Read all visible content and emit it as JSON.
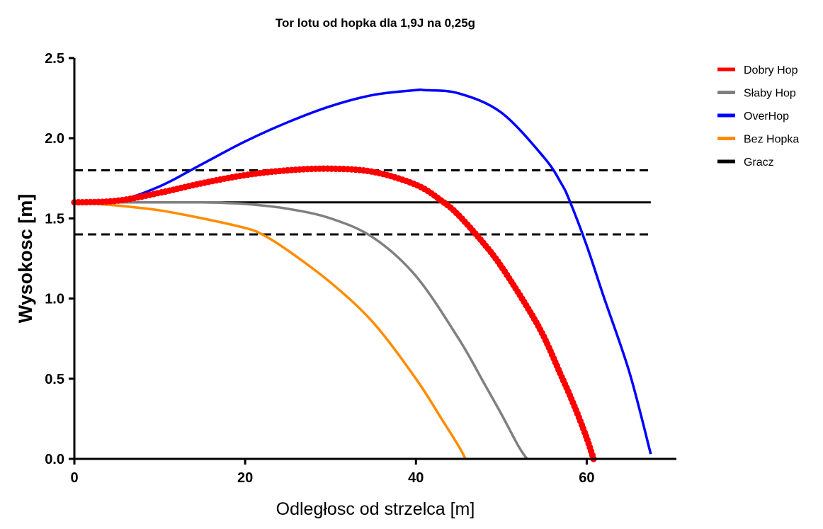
{
  "chart_data": {
    "type": "line",
    "title": "Tor lotu od hopka dla 1,9J na 0,25g",
    "xlabel": "Odległosc od strzelca [m]",
    "ylabel": "Wysokosc [m]",
    "xlim": [
      0,
      70.5
    ],
    "ylim": [
      0,
      2.5
    ],
    "xticks": [
      0,
      20,
      40,
      60
    ],
    "xtick_labels": [
      "0",
      "20",
      "40",
      "60"
    ],
    "yticks": [
      0,
      0.5,
      1.0,
      1.5,
      2.0,
      2.5
    ],
    "ytick_labels": [
      "0.0",
      "0.5",
      "1.0",
      "1.5",
      "2.0",
      "2.5"
    ],
    "legend_position": "right",
    "series": [
      {
        "name": "Dobry Hop",
        "color": "#ff0000",
        "style": "markers",
        "x": [
          0,
          5,
          10,
          15,
          20,
          25,
          30,
          35,
          40,
          43,
          45,
          48,
          50,
          53,
          55,
          57,
          58,
          59,
          60,
          60.8
        ],
        "y": [
          1.6,
          1.61,
          1.66,
          1.72,
          1.77,
          1.8,
          1.81,
          1.79,
          1.71,
          1.61,
          1.52,
          1.34,
          1.2,
          0.95,
          0.76,
          0.52,
          0.4,
          0.27,
          0.13,
          0.0
        ]
      },
      {
        "name": "Słaby Hop",
        "color": "#808080",
        "style": "line",
        "x": [
          0,
          5,
          10,
          15,
          20,
          25,
          30,
          35,
          40,
          45,
          48,
          50,
          52,
          53
        ],
        "y": [
          1.6,
          1.6,
          1.6,
          1.6,
          1.59,
          1.56,
          1.5,
          1.38,
          1.14,
          0.75,
          0.47,
          0.28,
          0.08,
          0.0
        ]
      },
      {
        "name": "OverHop",
        "color": "#0000ff",
        "style": "line",
        "x": [
          0,
          5,
          10,
          15,
          20,
          25,
          30,
          35,
          40,
          41,
          45,
          50,
          55,
          57,
          58,
          60,
          62,
          65,
          67.5
        ],
        "y": [
          1.6,
          1.61,
          1.7,
          1.84,
          1.98,
          2.1,
          2.2,
          2.27,
          2.3,
          2.3,
          2.28,
          2.16,
          1.88,
          1.72,
          1.61,
          1.33,
          1.01,
          0.54,
          0.03
        ]
      },
      {
        "name": "Bez Hopka",
        "color": "#ff8c00",
        "style": "line",
        "x": [
          0,
          5,
          10,
          15,
          20,
          22,
          25,
          30,
          35,
          40,
          43,
          45,
          45.8
        ],
        "y": [
          1.6,
          1.58,
          1.55,
          1.5,
          1.44,
          1.4,
          1.3,
          1.1,
          0.85,
          0.5,
          0.25,
          0.08,
          0.0
        ]
      },
      {
        "name": "Gracz",
        "color": "#000000",
        "style": "line",
        "x": [
          0,
          67.5
        ],
        "y": [
          1.6,
          1.6
        ]
      }
    ],
    "reference_lines": [
      {
        "y": 1.8,
        "style": "dashed",
        "color": "#000000",
        "x": [
          0,
          67.5
        ]
      },
      {
        "y": 1.4,
        "style": "dashed",
        "color": "#000000",
        "x": [
          0,
          67.5
        ]
      }
    ]
  }
}
